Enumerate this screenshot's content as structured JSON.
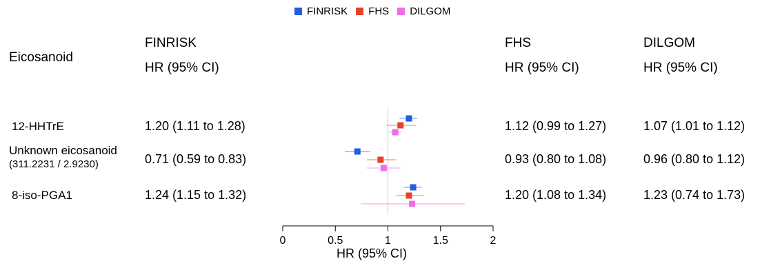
{
  "chart_data": {
    "type": "forest",
    "legend": {
      "placement": "top-center",
      "entries": [
        {
          "name": "FINRISK",
          "color": "#1f5fe0"
        },
        {
          "name": "FHS",
          "color": "#e4432a"
        },
        {
          "name": "DILGOM",
          "color": "#ee6ee6"
        }
      ]
    },
    "columns": {
      "eicosanoid": "Eicosanoid",
      "finrisk": {
        "name": "FINRISK",
        "sub": "HR (95% CI)"
      },
      "fhs": {
        "name": "FHS",
        "sub": "HR (95% CI)"
      },
      "dilgom": {
        "name": "DILGOM",
        "sub": "HR (95% CI)"
      }
    },
    "rows": [
      {
        "label": "12-HHTrE",
        "sublabel": "",
        "finrisk_text": "1.20 (1.11 to 1.28)",
        "fhs_text": "1.12 (0.99 to 1.27)",
        "dilgom_text": "1.07 (1.01 to 1.12)",
        "estimates": [
          {
            "cohort": "FINRISK",
            "hr": 1.2,
            "lo": 1.11,
            "hi": 1.28
          },
          {
            "cohort": "FHS",
            "hr": 1.12,
            "lo": 0.99,
            "hi": 1.27
          },
          {
            "cohort": "DILGOM",
            "hr": 1.07,
            "lo": 1.01,
            "hi": 1.12
          }
        ]
      },
      {
        "label": "Unknown eicosanoid",
        "sublabel": "(311.2231 / 2.9230)",
        "finrisk_text": "0.71 (0.59 to 0.83)",
        "fhs_text": "0.93 (0.80 to 1.08)",
        "dilgom_text": "0.96 (0.80 to 1.12)",
        "estimates": [
          {
            "cohort": "FINRISK",
            "hr": 0.71,
            "lo": 0.59,
            "hi": 0.83
          },
          {
            "cohort": "FHS",
            "hr": 0.93,
            "lo": 0.8,
            "hi": 1.08
          },
          {
            "cohort": "DILGOM",
            "hr": 0.96,
            "lo": 0.8,
            "hi": 1.12
          }
        ]
      },
      {
        "label": "8-iso-PGA1",
        "sublabel": "",
        "finrisk_text": "1.24 (1.15 to 1.32)",
        "fhs_text": "1.20 (1.08 to 1.34)",
        "dilgom_text": "1.23 (0.74 to 1.73)",
        "estimates": [
          {
            "cohort": "FINRISK",
            "hr": 1.24,
            "lo": 1.15,
            "hi": 1.32
          },
          {
            "cohort": "FHS",
            "hr": 1.2,
            "lo": 1.08,
            "hi": 1.34
          },
          {
            "cohort": "DILGOM",
            "hr": 1.23,
            "lo": 0.74,
            "hi": 1.73
          }
        ]
      }
    ],
    "x_axis": {
      "label": "HR (95% CI)",
      "ticks": [
        0,
        0.5,
        1,
        1.5,
        2
      ],
      "tick_labels": [
        "0",
        "0.5",
        "1",
        "1.5",
        "2"
      ],
      "xlim": [
        0,
        2
      ],
      "reference_line": 1
    },
    "grid": false
  }
}
